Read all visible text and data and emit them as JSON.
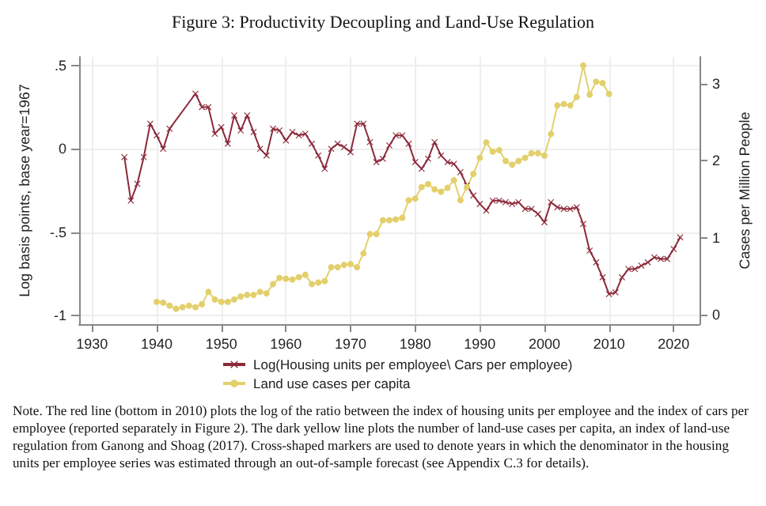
{
  "chart_data": {
    "type": "line",
    "title": "Figure 3: Productivity Decoupling and Land-Use Regulation",
    "ylabel": "Log basis points, base year=1967",
    "y2label": "Cases per Million People",
    "xlim": [
      1928,
      2024
    ],
    "xticks": [
      1930,
      1940,
      1950,
      1960,
      1970,
      1980,
      1990,
      2000,
      2010,
      2020
    ],
    "ylim": [
      -1.05,
      0.55
    ],
    "yticks": [
      {
        "value": -1,
        "label": "-1"
      },
      {
        "value": -0.5,
        "label": "-.5"
      },
      {
        "value": 0,
        "label": "0"
      },
      {
        "value": 0.5,
        "label": ".5"
      }
    ],
    "y2lim": [
      -0.12,
      3.35
    ],
    "y2ticks": [
      0,
      1,
      2,
      3
    ],
    "grid": true,
    "legend": "bottom",
    "series": [
      {
        "name": "Log(Housing units per employee\\ Cars per employee)",
        "color": "#8b2a3a",
        "marker": "cross",
        "x": [
          1935,
          1936,
          1937,
          1938,
          1939,
          1940,
          1941,
          1942,
          1946,
          1947,
          1948,
          1949,
          1950,
          1951,
          1952,
          1953,
          1954,
          1955,
          1956,
          1957,
          1958,
          1959,
          1960,
          1961,
          1962,
          1963,
          1964,
          1965,
          1966,
          1967,
          1968,
          1969,
          1970,
          1971,
          1972,
          1973,
          1974,
          1975,
          1976,
          1977,
          1978,
          1979,
          1980,
          1981,
          1982,
          1983,
          1984,
          1985,
          1986,
          1987,
          1988,
          1989,
          1990,
          1991,
          1992,
          1993,
          1994,
          1995,
          1996,
          1997,
          1998,
          1999,
          2000,
          2001,
          2002,
          2003,
          2004,
          2005,
          2006,
          2007,
          2008,
          2009,
          2010,
          2011,
          2012,
          2013,
          2014,
          2015,
          2016,
          2017,
          2018,
          2019,
          2020,
          2021
        ],
        "values": [
          -0.05,
          -0.31,
          -0.21,
          -0.05,
          0.15,
          0.08,
          0.0,
          0.12,
          0.33,
          0.25,
          0.25,
          0.09,
          0.13,
          0.03,
          0.2,
          0.11,
          0.2,
          0.1,
          0.0,
          -0.04,
          0.12,
          0.11,
          0.05,
          0.1,
          0.08,
          0.09,
          0.03,
          -0.04,
          -0.12,
          0.0,
          0.03,
          0.01,
          -0.02,
          0.15,
          0.15,
          0.04,
          -0.08,
          -0.06,
          0.02,
          0.08,
          0.08,
          0.03,
          -0.08,
          -0.12,
          -0.06,
          0.04,
          -0.04,
          -0.08,
          -0.09,
          -0.14,
          -0.22,
          -0.28,
          -0.33,
          -0.37,
          -0.31,
          -0.31,
          -0.32,
          -0.33,
          -0.32,
          -0.36,
          -0.36,
          -0.39,
          -0.44,
          -0.32,
          -0.35,
          -0.36,
          -0.36,
          -0.35,
          -0.45,
          -0.61,
          -0.68,
          -0.77,
          -0.87,
          -0.86,
          -0.77,
          -0.72,
          -0.72,
          -0.7,
          -0.68,
          -0.65,
          -0.66,
          -0.66,
          -0.6,
          -0.53
        ]
      },
      {
        "name": "Land use cases per capita",
        "color": "#e3d06c",
        "marker": "circle",
        "axis": "y2",
        "x": [
          1940,
          1941,
          1942,
          1943,
          1944,
          1945,
          1946,
          1947,
          1948,
          1949,
          1950,
          1951,
          1952,
          1953,
          1954,
          1955,
          1956,
          1957,
          1958,
          1959,
          1960,
          1961,
          1962,
          1963,
          1964,
          1965,
          1966,
          1967,
          1968,
          1969,
          1970,
          1971,
          1972,
          1973,
          1974,
          1975,
          1976,
          1977,
          1978,
          1979,
          1980,
          1981,
          1982,
          1983,
          1984,
          1985,
          1986,
          1987,
          1988,
          1989,
          1990,
          1991,
          1992,
          1993,
          1994,
          1995,
          1996,
          1997,
          1998,
          1999,
          2000,
          2001,
          2002,
          2003,
          2004,
          2005,
          2006,
          2007,
          2008,
          2009,
          2010
        ],
        "values": [
          0.17,
          0.16,
          0.12,
          0.08,
          0.1,
          0.12,
          0.1,
          0.14,
          0.3,
          0.2,
          0.17,
          0.17,
          0.2,
          0.24,
          0.26,
          0.26,
          0.3,
          0.28,
          0.4,
          0.48,
          0.47,
          0.46,
          0.49,
          0.52,
          0.4,
          0.42,
          0.44,
          0.62,
          0.62,
          0.65,
          0.66,
          0.62,
          0.8,
          1.05,
          1.05,
          1.23,
          1.23,
          1.24,
          1.26,
          1.49,
          1.51,
          1.66,
          1.7,
          1.63,
          1.6,
          1.65,
          1.75,
          1.49,
          1.66,
          1.83,
          2.04,
          2.24,
          2.12,
          2.14,
          2.0,
          1.95,
          2.0,
          2.04,
          2.1,
          2.1,
          2.07,
          2.35,
          2.72,
          2.74,
          2.72,
          2.83,
          3.24,
          2.86,
          3.03,
          3.01,
          2.87
        ]
      }
    ],
    "annotations": [
      "Note. The red line (bottom in 2010) plots the log of the ratio between the index of housing units per employee and the index of cars per employee (reported separately in Figure 2). The dark yellow line plots the number of land-use cases per capita, an index of land-use regulation from Ganong and Shoag (2017). Cross-shaped markers are used to denote years in which the denominator in the housing units per employee series was estimated through an out-of-sample forecast (see Appendix C.3 for details)."
    ]
  }
}
